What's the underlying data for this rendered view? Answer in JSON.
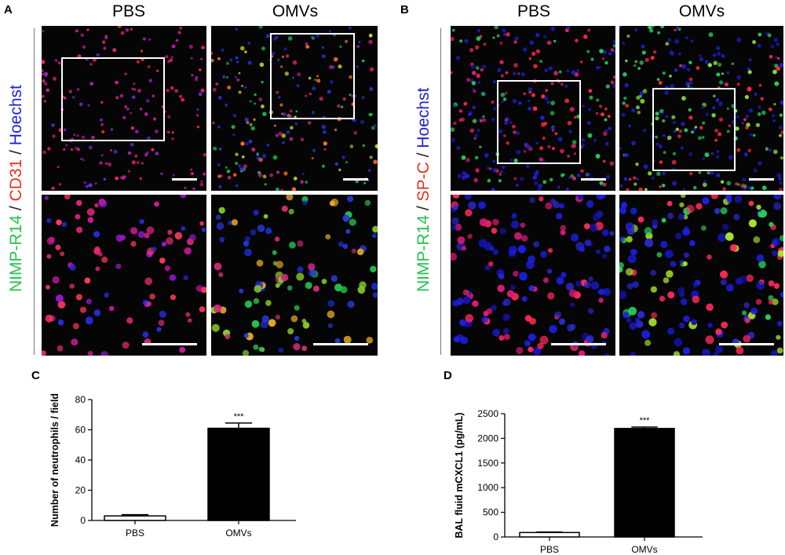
{
  "panels": {
    "A": {
      "letter": "A",
      "col1": "PBS",
      "col2": "OMVs",
      "stain": [
        "NIMP-R14",
        "/",
        "CD31",
        "/",
        "Hoechst"
      ],
      "colors": {
        "green": "#22c34a",
        "red": "#e8321e",
        "blue": "#1d1fd8"
      }
    },
    "B": {
      "letter": "B",
      "col1": "PBS",
      "col2": "OMVs",
      "stain": [
        "NIMP-R14",
        "/",
        "SP-C",
        "/",
        "Hoechst"
      ],
      "colors": {
        "green": "#22c34a",
        "red": "#e8321e",
        "blue": "#1d1fd8"
      }
    },
    "C": {
      "letter": "C"
    },
    "D": {
      "letter": "D"
    }
  },
  "chart_data": [
    {
      "type": "bar",
      "categories": [
        "PBS",
        "OMVs"
      ],
      "values": [
        3,
        61
      ],
      "errors": [
        0.8,
        3.5
      ],
      "bar_fill": [
        "#ffffff",
        "#000000"
      ],
      "annotations": [
        "",
        "***"
      ],
      "xlabel": "",
      "ylabel": "Number of neutrophils / field",
      "ylim": [
        0,
        80
      ],
      "yticks": [
        0,
        20,
        40,
        60,
        80
      ],
      "grid": false
    },
    {
      "type": "bar",
      "categories": [
        "PBS",
        "OMVs"
      ],
      "values": [
        90,
        2200
      ],
      "errors": [
        10,
        30
      ],
      "bar_fill": [
        "#ffffff",
        "#000000"
      ],
      "annotations": [
        "",
        "***"
      ],
      "xlabel": "",
      "ylabel": "BAL fluid mCXCL1 (pg/mL)",
      "ylim": [
        0,
        2500
      ],
      "yticks": [
        0,
        500,
        1000,
        1500,
        2000,
        2500
      ],
      "grid": false
    }
  ]
}
